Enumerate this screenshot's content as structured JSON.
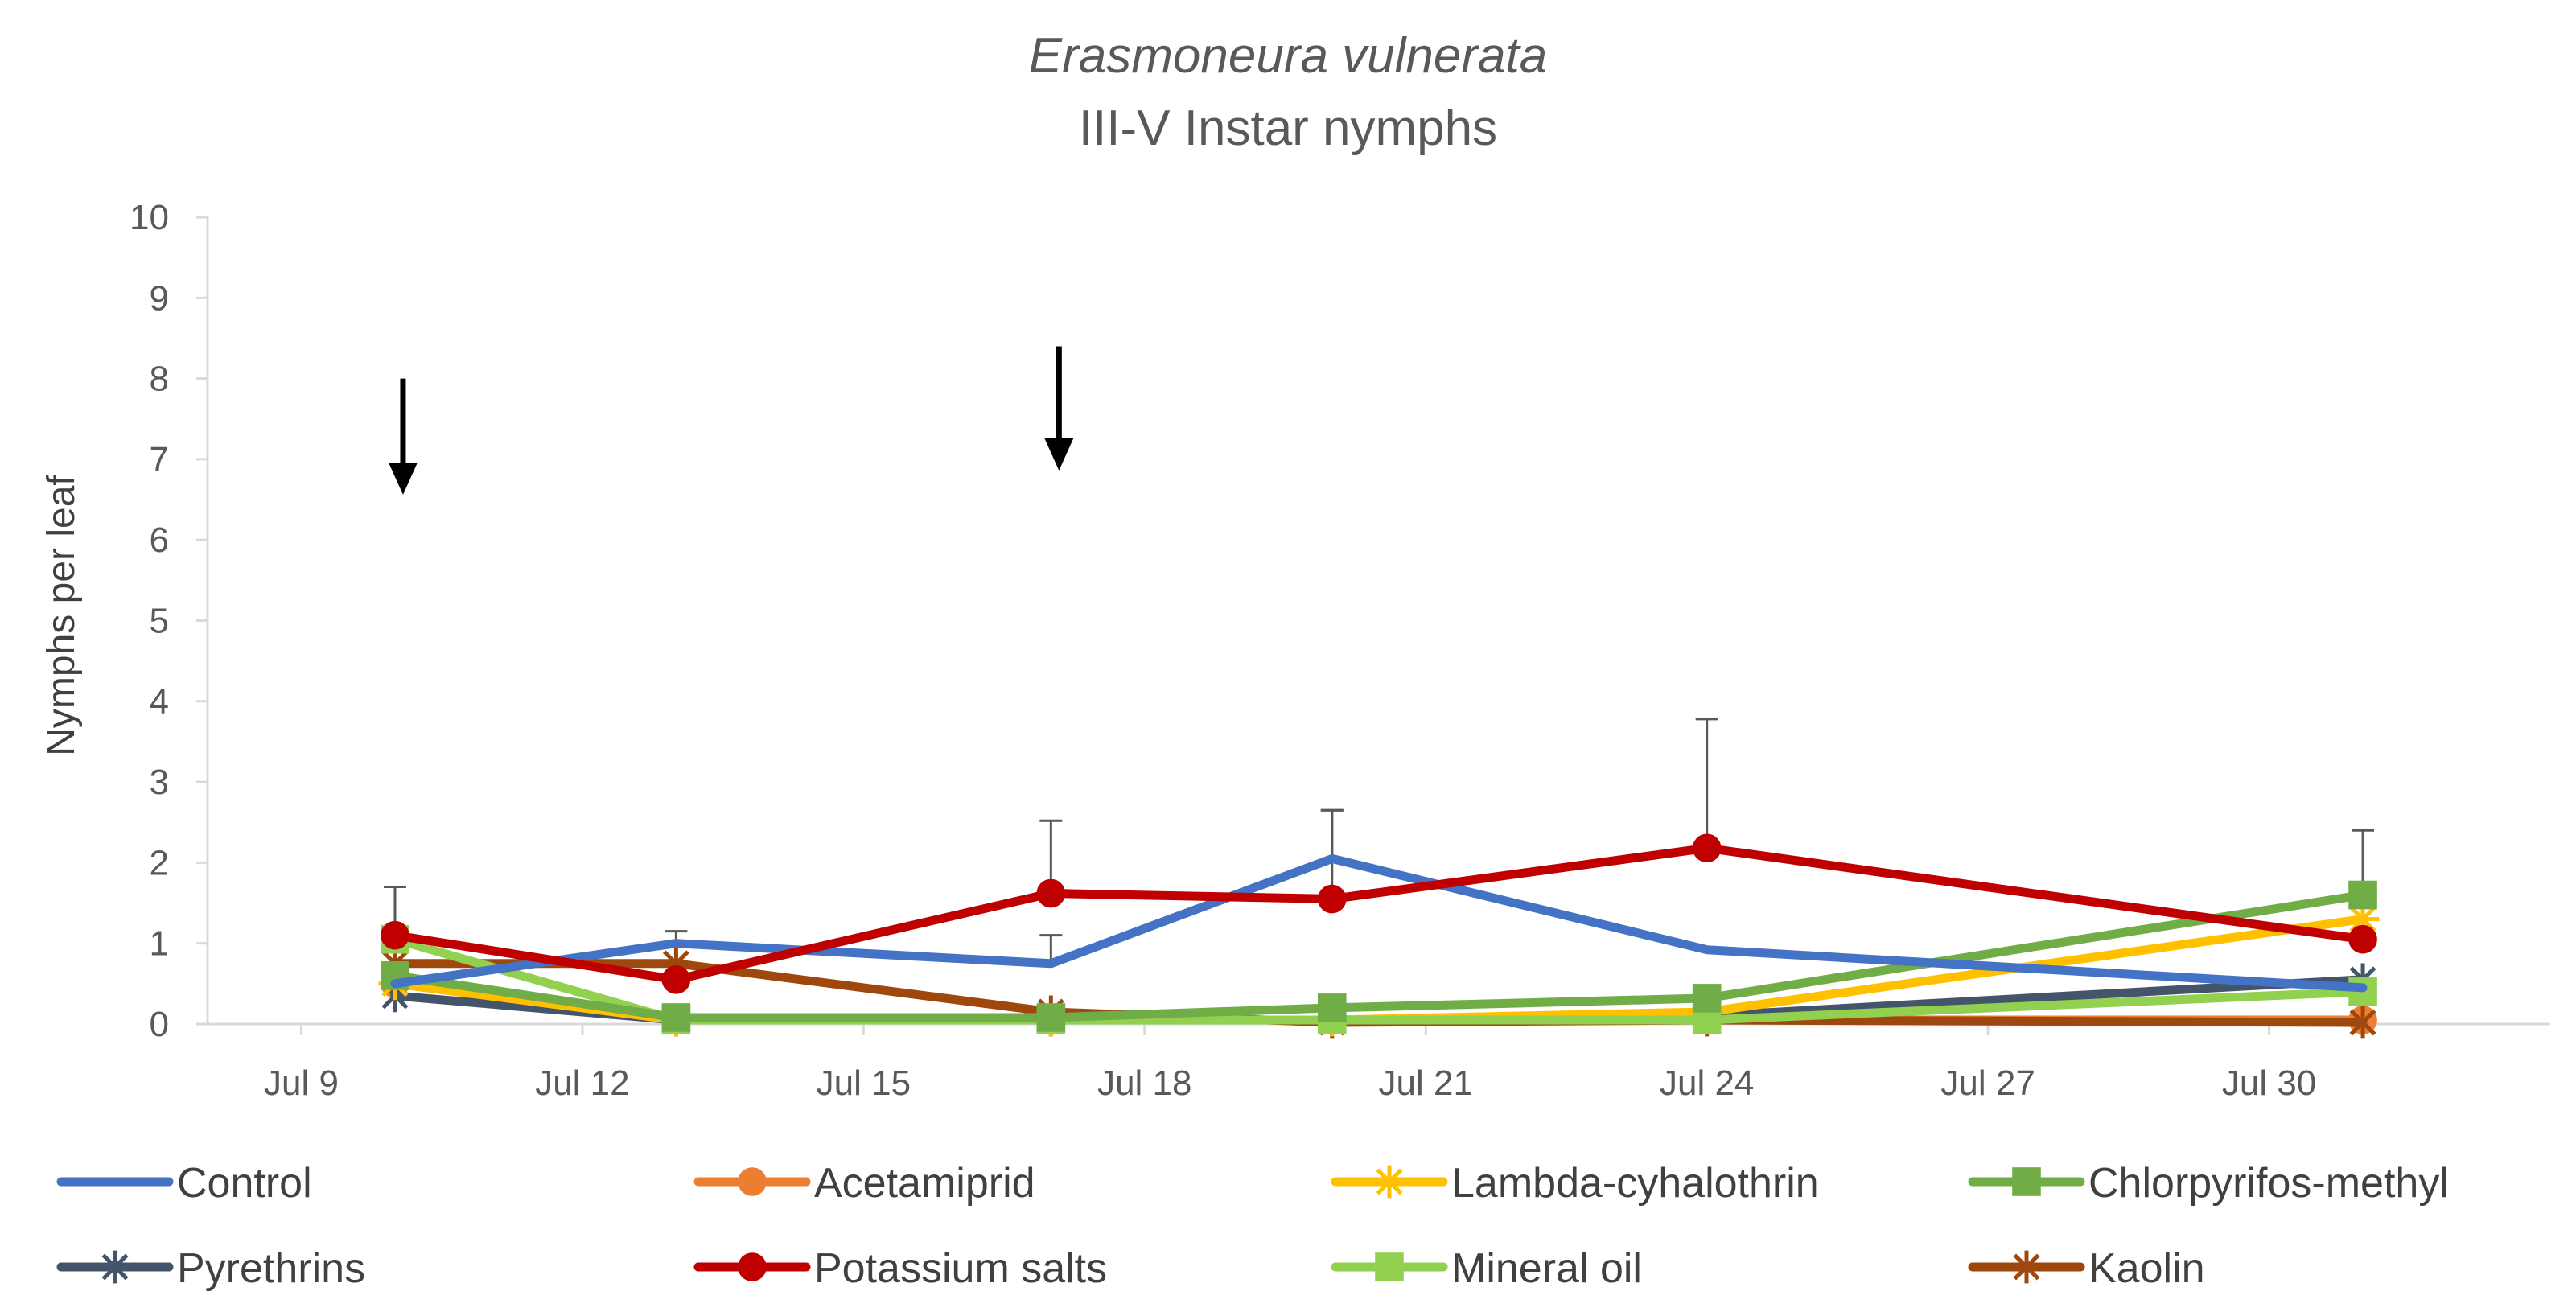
{
  "chart_data": {
    "type": "line",
    "title": "Erasmoneura vulnerata",
    "subtitle": "III-V Instar nymphs",
    "xlabel": "",
    "ylabel": "Nymphs per leaf",
    "ylim": [
      0,
      10
    ],
    "yticks": [
      0,
      1,
      2,
      3,
      4,
      5,
      6,
      7,
      8,
      9,
      10
    ],
    "xlim": [
      8,
      33
    ],
    "xticks": [
      {
        "value": 9,
        "label": "Jul 9"
      },
      {
        "value": 12,
        "label": "Jul 12"
      },
      {
        "value": 15,
        "label": "Jul 15"
      },
      {
        "value": 18,
        "label": "Jul 18"
      },
      {
        "value": 21,
        "label": "Jul 21"
      },
      {
        "value": 24,
        "label": "Jul 24"
      },
      {
        "value": 27,
        "label": "Jul 27"
      },
      {
        "value": 30,
        "label": "Jul 30"
      }
    ],
    "x": [
      10,
      13,
      17,
      20,
      24,
      31
    ],
    "grid": false,
    "legend": "bottom",
    "series": [
      {
        "name": "Control",
        "color": "#4472C4",
        "marker": "none",
        "values": [
          0.5,
          1.0,
          0.75,
          2.05,
          0.92,
          0.45
        ],
        "errors": [
          0,
          0,
          0.35,
          0.6,
          0,
          0
        ]
      },
      {
        "name": "Acetamiprid",
        "color": "#ED7D31",
        "marker": "circle",
        "values": [
          0.5,
          0.05,
          0.05,
          0.05,
          0.05,
          0.05
        ],
        "errors": [
          0,
          0,
          0,
          0,
          0,
          0
        ]
      },
      {
        "name": "Lambda-cyhalothrin",
        "color": "#FFC000",
        "marker": "star",
        "values": [
          0.5,
          0.05,
          0.05,
          0.05,
          0.15,
          1.3
        ],
        "errors": [
          0,
          0,
          0,
          0,
          0,
          0
        ]
      },
      {
        "name": "Chlorpyrifos-methyl",
        "color": "#70AD47",
        "marker": "square",
        "values": [
          0.6,
          0.08,
          0.08,
          0.2,
          0.32,
          1.6
        ],
        "errors": [
          0,
          0,
          0,
          0,
          0,
          0
        ]
      },
      {
        "name": "Pyrethrins",
        "color": "#44546A",
        "marker": "asterisk",
        "values": [
          0.35,
          0.05,
          0.05,
          0.05,
          0.1,
          0.55
        ],
        "errors": [
          0,
          0,
          0,
          0,
          0,
          0
        ]
      },
      {
        "name": "Potassium salts",
        "color": "#C00000",
        "marker": "circle",
        "values": [
          1.1,
          0.55,
          1.62,
          1.55,
          2.18,
          1.05
        ],
        "errors": [
          0.6,
          0.6,
          0.9,
          1.1,
          1.6,
          1.35
        ]
      },
      {
        "name": "Mineral oil",
        "color": "#92D050",
        "marker": "square",
        "values": [
          1.05,
          0.05,
          0.05,
          0.05,
          0.05,
          0.4
        ],
        "errors": [
          0,
          0,
          0,
          0,
          0,
          0
        ]
      },
      {
        "name": "Kaolin",
        "color": "#9E480E",
        "marker": "asterisk",
        "values": [
          0.75,
          0.75,
          0.15,
          0.02,
          0.05,
          0.02
        ],
        "errors": [
          0,
          0,
          0,
          0,
          0,
          0
        ]
      }
    ],
    "annotations": [
      {
        "type": "arrow",
        "x": 10,
        "y_from": 8.0,
        "y_to": 6.6
      },
      {
        "type": "arrow",
        "x": 17,
        "y_from": 8.4,
        "y_to": 6.9
      }
    ]
  }
}
